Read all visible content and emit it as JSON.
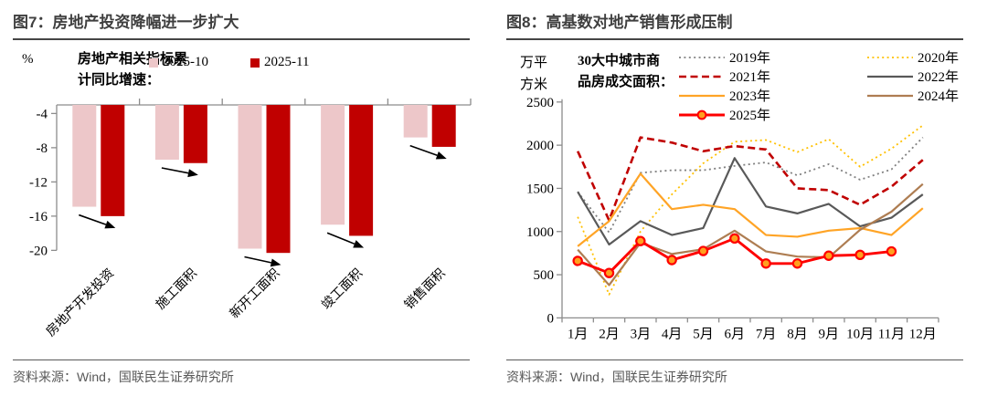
{
  "figures": [
    {
      "id": "fig7",
      "title": "图7：房地产投资降幅进一步扩大",
      "unit_label": "%",
      "annotation_lines": [
        "房地产相关指标累",
        "计同比增速："
      ],
      "source": "资料来源：Wind，国联民生证券研究所",
      "chart_data": {
        "type": "bar",
        "categories": [
          "房地产开发投资",
          "施工面积",
          "新开工面积",
          "竣工面积",
          "销售面积"
        ],
        "series": [
          {
            "name": "2025-10",
            "color": "#EDC7C9",
            "values": [
              -14.9,
              -9.4,
              -19.8,
              -17.0,
              -6.8
            ]
          },
          {
            "name": "2025-11",
            "color": "#C00000",
            "values": [
              -16.0,
              -9.8,
              -20.3,
              -18.3,
              -7.9
            ]
          }
        ],
        "xlabel": "",
        "ylabel": "%",
        "y_ticks": [
          -4,
          -8,
          -12,
          -16,
          -20
        ],
        "ylim": [
          -21,
          -3
        ],
        "grid": false,
        "legend_position": "top",
        "annotations": "每组有黑色箭头由2025-10柱底指向2025-11柱底，表示降幅扩大"
      }
    },
    {
      "id": "fig8",
      "title": "图8：高基数对地产销售形成压制",
      "unit_lines": [
        "万平",
        "方米"
      ],
      "annotation_lines": [
        "30大中城市商",
        "品房成交面积："
      ],
      "source": "资料来源：Wind，国联民生证券研究所",
      "chart_data": {
        "type": "line",
        "x": [
          "1月",
          "2月",
          "3月",
          "4月",
          "5月",
          "6月",
          "7月",
          "8月",
          "9月",
          "10月",
          "11月",
          "12月"
        ],
        "y_ticks": [
          0,
          500,
          1000,
          1500,
          2000,
          2500
        ],
        "ylim": [
          0,
          2500
        ],
        "grid": false,
        "legend_position": "top-right-two-columns",
        "series": [
          {
            "name": "2019年",
            "color": "#808080",
            "style": "dotted",
            "legend_column": 0,
            "values": [
              1460,
              990,
              1680,
              1710,
              1710,
              1760,
              1800,
              1650,
              1780,
              1600,
              1720,
              2090
            ]
          },
          {
            "name": "2020年",
            "color": "#FFC000",
            "style": "dotted",
            "legend_column": 1,
            "values": [
              1170,
              270,
              1000,
              1430,
              1790,
              2040,
              2060,
              1920,
              2070,
              1750,
              1960,
              2230
            ]
          },
          {
            "name": "2021年",
            "color": "#C00000",
            "style": "dashed",
            "legend_column": 0,
            "values": [
              1930,
              1130,
              2090,
              2030,
              1930,
              1990,
              1950,
              1500,
              1480,
              1310,
              1520,
              1830
            ]
          },
          {
            "name": "2022年",
            "color": "#595959",
            "style": "solid",
            "legend_column": 1,
            "values": [
              1460,
              850,
              1120,
              960,
              1040,
              1850,
              1290,
              1210,
              1320,
              1060,
              1160,
              1430
            ]
          },
          {
            "name": "2023年",
            "color": "#FFA426",
            "style": "solid",
            "legend_column": 0,
            "values": [
              830,
              1120,
              1670,
              1260,
              1310,
              1260,
              960,
              940,
              1010,
              1040,
              960,
              1270
            ]
          },
          {
            "name": "2024年",
            "color": "#AE7D52",
            "style": "solid",
            "legend_column": 1,
            "values": [
              790,
              380,
              870,
              740,
              795,
              1010,
              770,
              710,
              700,
              1020,
              1230,
              1550
            ]
          },
          {
            "name": "2025年",
            "color": "#FE0000",
            "style": "solid-marker",
            "marker_fill": "#FFA01E",
            "legend_column": 0,
            "values": [
              660,
              520,
              890,
              670,
              775,
              920,
              630,
              630,
              720,
              730,
              770
            ]
          }
        ]
      }
    }
  ],
  "style": {
    "axis_color": "#8c8c8c",
    "arrow_color": "#000000",
    "title_color": "#3f3f3f",
    "source_color": "#595959"
  }
}
